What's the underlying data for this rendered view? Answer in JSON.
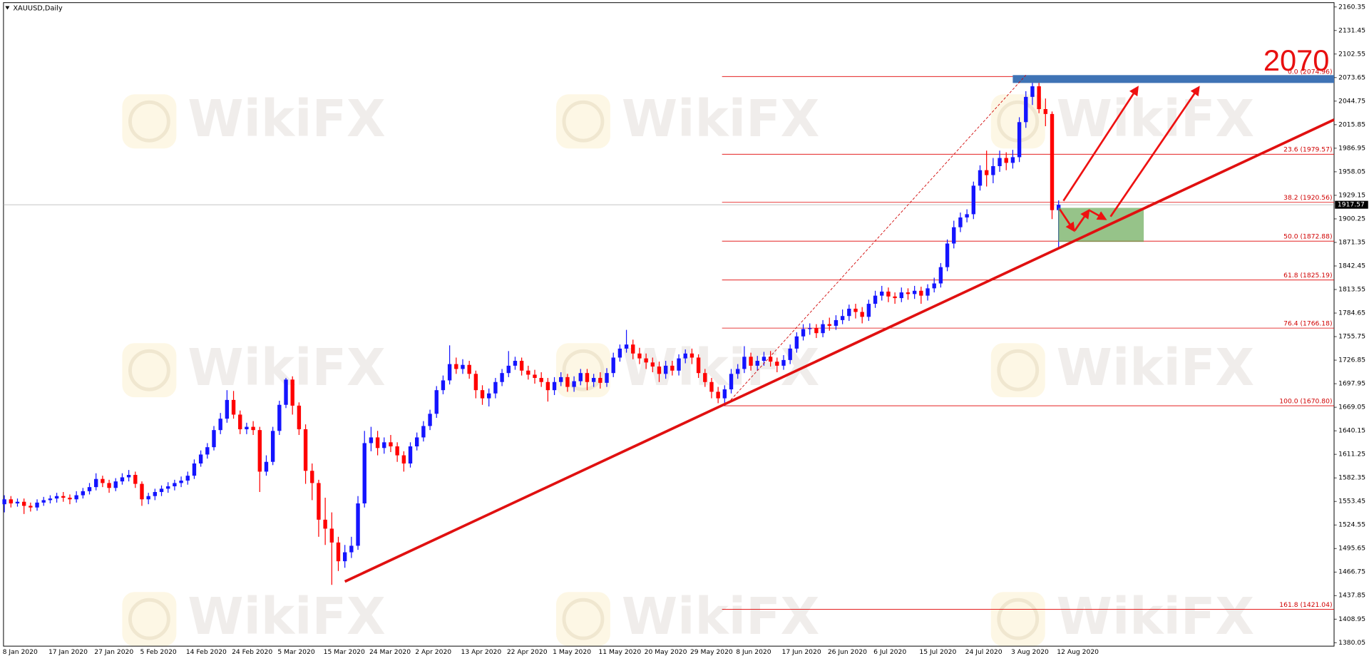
{
  "chart_data": {
    "type": "candlestick",
    "title": "XAUUSD,Daily",
    "watermark": "WikiFX",
    "annotation": "2070",
    "up_color": "#1414ff",
    "down_color": "#ff0000",
    "current_price": 1917.57,
    "categories": [
      "8 Jan 2020",
      null,
      null,
      null,
      null,
      null,
      null,
      "17 Jan 2020",
      null,
      null,
      null,
      null,
      null,
      null,
      "27 Jan 2020",
      null,
      null,
      null,
      null,
      null,
      null,
      "5 Feb 2020",
      null,
      null,
      null,
      null,
      null,
      null,
      "14 Feb 2020",
      null,
      null,
      null,
      null,
      null,
      null,
      "24 Feb 2020",
      null,
      null,
      null,
      null,
      null,
      null,
      "5 Mar 2020",
      null,
      null,
      null,
      null,
      null,
      null,
      "15 Mar 2020",
      null,
      null,
      null,
      null,
      null,
      null,
      "24 Mar 2020",
      null,
      null,
      null,
      null,
      null,
      null,
      "2 Apr 2020",
      null,
      null,
      null,
      null,
      null,
      null,
      "13 Apr 2020",
      null,
      null,
      null,
      null,
      null,
      null,
      "22 Apr 2020",
      null,
      null,
      null,
      null,
      null,
      null,
      "1 May 2020",
      null,
      null,
      null,
      null,
      null,
      null,
      "11 May 2020",
      null,
      null,
      null,
      null,
      null,
      null,
      "20 May 2020",
      null,
      null,
      null,
      null,
      null,
      null,
      "29 May 2020",
      null,
      null,
      null,
      null,
      null,
      null,
      "8 Jun 2020",
      null,
      null,
      null,
      null,
      null,
      null,
      "17 Jun 2020",
      null,
      null,
      null,
      null,
      null,
      null,
      "26 Jun 2020",
      null,
      null,
      null,
      null,
      null,
      null,
      "6 Jul 2020",
      null,
      null,
      null,
      null,
      null,
      null,
      "15 Jul 2020",
      null,
      null,
      null,
      null,
      null,
      null,
      "24 Jul 2020",
      null,
      null,
      null,
      null,
      null,
      null,
      "3 Aug 2020",
      null,
      null,
      null,
      null,
      null,
      null,
      "12 Aug 2020"
    ],
    "open": [
      1550,
      1556,
      1551,
      1553,
      1548,
      1546,
      1552,
      1555,
      1557,
      1560,
      1558,
      1556,
      1561,
      1566,
      1571,
      1581,
      1576,
      1570,
      1578,
      1583,
      1586,
      1575,
      1556,
      1560,
      1565,
      1569,
      1572,
      1576,
      1579,
      1585,
      1600,
      1611,
      1620,
      1641,
      1655,
      1678,
      1660,
      1642,
      1645,
      1641,
      1590,
      1602,
      1640,
      1672,
      1703,
      1671,
      1642,
      1591,
      1576,
      1531,
      1520,
      1503,
      1480,
      1491,
      1499,
      1551,
      1625,
      1632,
      1619,
      1626,
      1621,
      1610,
      1600,
      1621,
      1632,
      1646,
      1661,
      1690,
      1702,
      1722,
      1716,
      1721,
      1710,
      1690,
      1680,
      1686,
      1700,
      1711,
      1720,
      1726,
      1714,
      1709,
      1705,
      1700,
      1690,
      1700,
      1706,
      1694,
      1701,
      1711,
      1700,
      1705,
      1699,
      1711,
      1730,
      1741,
      1746,
      1735,
      1729,
      1724,
      1719,
      1710,
      1720,
      1714,
      1729,
      1735,
      1730,
      1711,
      1700,
      1688,
      1680,
      1691,
      1710,
      1716,
      1731,
      1720,
      1726,
      1731,
      1725,
      1720,
      1727,
      1741,
      1756,
      1765,
      1766,
      1760,
      1771,
      1769,
      1776,
      1781,
      1790,
      1786,
      1780,
      1796,
      1806,
      1811,
      1805,
      1803,
      1810,
      1808,
      1812,
      1806,
      1815,
      1821,
      1841,
      1870,
      1890,
      1902,
      1906,
      1941,
      1960,
      1954,
      1965,
      1975,
      1969,
      1976,
      2019,
      2050,
      2063,
      2035,
      2029,
      1911
    ],
    "high": [
      1561,
      1560,
      1557,
      1557,
      1552,
      1556,
      1559,
      1561,
      1564,
      1565,
      1562,
      1566,
      1570,
      1576,
      1588,
      1585,
      1580,
      1582,
      1588,
      1592,
      1590,
      1578,
      1564,
      1569,
      1573,
      1577,
      1580,
      1584,
      1590,
      1605,
      1616,
      1625,
      1646,
      1662,
      1690,
      1689,
      1665,
      1650,
      1652,
      1645,
      1610,
      1645,
      1677,
      1705,
      1707,
      1675,
      1648,
      1600,
      1580,
      1558,
      1540,
      1510,
      1500,
      1510,
      1560,
      1640,
      1645,
      1640,
      1632,
      1635,
      1626,
      1615,
      1626,
      1638,
      1652,
      1666,
      1695,
      1708,
      1745,
      1730,
      1728,
      1726,
      1714,
      1696,
      1692,
      1705,
      1716,
      1738,
      1731,
      1730,
      1720,
      1715,
      1712,
      1705,
      1706,
      1712,
      1710,
      1707,
      1716,
      1716,
      1710,
      1712,
      1717,
      1736,
      1746,
      1764,
      1752,
      1742,
      1735,
      1730,
      1725,
      1726,
      1726,
      1734,
      1740,
      1741,
      1734,
      1716,
      1705,
      1694,
      1696,
      1716,
      1722,
      1744,
      1736,
      1732,
      1737,
      1738,
      1730,
      1733,
      1746,
      1761,
      1771,
      1772,
      1771,
      1776,
      1779,
      1782,
      1789,
      1795,
      1796,
      1792,
      1801,
      1812,
      1818,
      1816,
      1810,
      1816,
      1815,
      1818,
      1817,
      1820,
      1828,
      1846,
      1875,
      1898,
      1908,
      1912,
      1946,
      1966,
      1984,
      1975,
      1984,
      1982,
      1985,
      2025,
      2057,
      2070,
      2074.96,
      2048,
      2032,
      1923
    ],
    "low": [
      1540,
      1546,
      1547,
      1538,
      1541,
      1542,
      1548,
      1551,
      1552,
      1553,
      1550,
      1552,
      1557,
      1562,
      1567,
      1571,
      1564,
      1566,
      1574,
      1578,
      1570,
      1548,
      1550,
      1555,
      1560,
      1564,
      1567,
      1571,
      1574,
      1581,
      1596,
      1606,
      1616,
      1636,
      1650,
      1655,
      1636,
      1636,
      1635,
      1565,
      1585,
      1598,
      1635,
      1668,
      1660,
      1635,
      1575,
      1555,
      1510,
      1500,
      1451,
      1468,
      1472,
      1484,
      1494,
      1546,
      1615,
      1610,
      1612,
      1614,
      1602,
      1590,
      1595,
      1616,
      1627,
      1641,
      1656,
      1685,
      1697,
      1710,
      1710,
      1704,
      1680,
      1672,
      1670,
      1680,
      1695,
      1706,
      1715,
      1708,
      1703,
      1698,
      1694,
      1676,
      1684,
      1695,
      1688,
      1688,
      1696,
      1690,
      1694,
      1692,
      1694,
      1706,
      1725,
      1736,
      1728,
      1722,
      1716,
      1712,
      1700,
      1704,
      1708,
      1708,
      1723,
      1722,
      1705,
      1694,
      1680,
      1674,
      1670.8,
      1686,
      1704,
      1711,
      1714,
      1714,
      1720,
      1719,
      1712,
      1715,
      1722,
      1736,
      1751,
      1758,
      1754,
      1755,
      1763,
      1764,
      1771,
      1775,
      1778,
      1772,
      1775,
      1791,
      1800,
      1798,
      1796,
      1798,
      1801,
      1802,
      1796,
      1800,
      1810,
      1816,
      1836,
      1864,
      1884,
      1896,
      1900,
      1935,
      1940,
      1944,
      1958,
      1960,
      1962,
      1970,
      2012,
      2040,
      2030,
      2014,
      1900,
      1863
    ],
    "close": [
      1556,
      1551,
      1553,
      1548,
      1546,
      1552,
      1555,
      1557,
      1560,
      1558,
      1556,
      1561,
      1566,
      1571,
      1581,
      1576,
      1570,
      1578,
      1583,
      1586,
      1575,
      1556,
      1560,
      1565,
      1569,
      1572,
      1576,
      1579,
      1585,
      1600,
      1611,
      1620,
      1641,
      1655,
      1678,
      1660,
      1642,
      1645,
      1641,
      1590,
      1602,
      1640,
      1672,
      1703,
      1671,
      1642,
      1591,
      1576,
      1531,
      1520,
      1503,
      1480,
      1491,
      1499,
      1551,
      1625,
      1632,
      1619,
      1626,
      1621,
      1610,
      1600,
      1621,
      1632,
      1646,
      1661,
      1690,
      1702,
      1722,
      1716,
      1721,
      1710,
      1690,
      1680,
      1686,
      1700,
      1711,
      1720,
      1726,
      1714,
      1709,
      1705,
      1700,
      1690,
      1700,
      1706,
      1694,
      1701,
      1711,
      1700,
      1705,
      1699,
      1711,
      1730,
      1741,
      1746,
      1735,
      1729,
      1724,
      1719,
      1710,
      1720,
      1714,
      1729,
      1735,
      1730,
      1711,
      1700,
      1688,
      1680,
      1691,
      1710,
      1716,
      1731,
      1720,
      1726,
      1731,
      1725,
      1720,
      1727,
      1741,
      1756,
      1765,
      1766,
      1760,
      1771,
      1769,
      1776,
      1781,
      1790,
      1786,
      1780,
      1796,
      1806,
      1811,
      1805,
      1803,
      1810,
      1808,
      1812,
      1806,
      1815,
      1821,
      1841,
      1870,
      1890,
      1902,
      1906,
      1941,
      1960,
      1954,
      1965,
      1975,
      1969,
      1976,
      2019,
      2050,
      2063,
      2035,
      2029,
      1911,
      1917.57
    ],
    "ylim": [
      1375.8,
      2164.6
    ],
    "yticks": [
      2160.35,
      2131.45,
      2102.55,
      2073.65,
      2044.75,
      2015.85,
      1986.95,
      1958.05,
      1929.15,
      1900.25,
      1871.35,
      1842.45,
      1813.55,
      1784.65,
      1755.75,
      1726.85,
      1697.95,
      1669.05,
      1640.15,
      1611.25,
      1582.35,
      1553.45,
      1524.55,
      1495.65,
      1466.75,
      1437.85,
      1408.95,
      1380.05
    ],
    "fib_levels": [
      {
        "value": 2074.96,
        "label": "0.0  (2074.96)"
      },
      {
        "value": 1979.57,
        "label": "23.6  (1979.57)"
      },
      {
        "value": 1920.56,
        "label": "38.2  (1920.56)"
      },
      {
        "value": 1872.88,
        "label": "50.0  (1872.88)"
      },
      {
        "value": 1825.19,
        "label": "61.8  (1825.19)"
      },
      {
        "value": 1766.18,
        "label": "76.4  (1766.18)"
      },
      {
        "value": 1670.8,
        "label": "100.0  (1670.80)"
      },
      {
        "value": 1421.04,
        "label": "161.8  (1421.04)"
      }
    ]
  }
}
